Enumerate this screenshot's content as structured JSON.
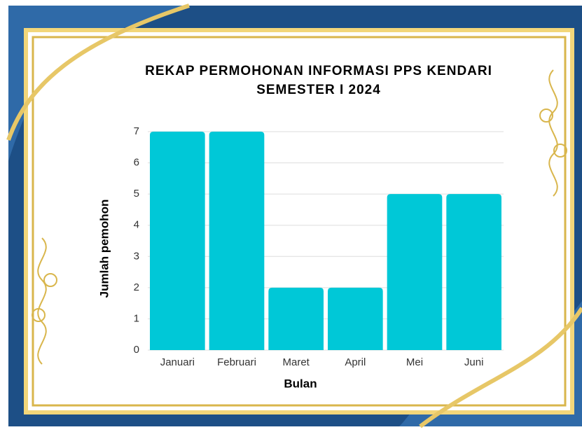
{
  "chart_data": {
    "type": "bar",
    "title": "REKAP PERMOHONAN INFORMASI PPS KENDARI",
    "subtitle": "SEMESTER I 2024",
    "x_label": "Bulan",
    "y_label": "Jumlah pemohon",
    "categories": [
      "Januari",
      "Februari",
      "Maret",
      "April",
      "Mei",
      "Juni"
    ],
    "values": [
      7,
      7,
      2,
      2,
      5,
      5
    ],
    "color": "#00c8d7",
    "ylim": [
      0,
      7
    ],
    "yticks": [
      0,
      1,
      2,
      3,
      4,
      5,
      6,
      7
    ],
    "grid": true
  }
}
